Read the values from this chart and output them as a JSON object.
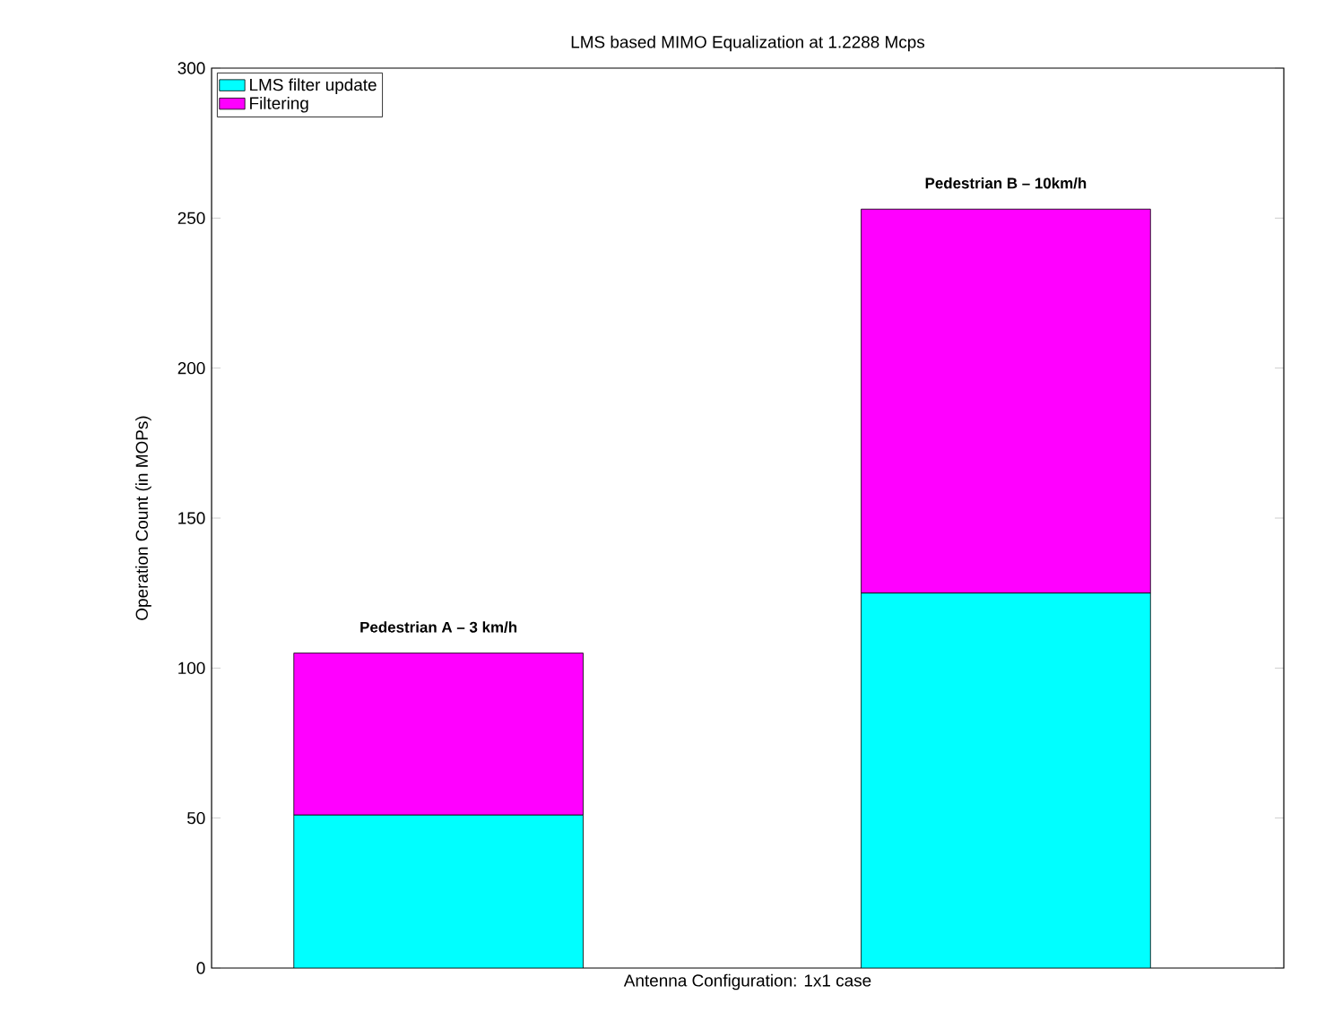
{
  "chart_data": {
    "type": "bar",
    "stacked": true,
    "title": "LMS based MIMO Equalization at 1.2288 Mcps",
    "xlabel": "Antenna Configuration: 1x1 case",
    "ylabel": "Operation Count (in MOPs)",
    "categories": [
      null,
      null
    ],
    "series": [
      {
        "name": "LMS filter update",
        "color": "#00ffff",
        "values": [
          51,
          125
        ]
      },
      {
        "name": "Filtering",
        "color": "#ff00ff",
        "values": [
          54,
          128
        ]
      }
    ],
    "annotations": [
      {
        "text": "Pedestrian A – 3 km/h",
        "y": 105
      },
      {
        "text": "Pedestrian B – 10km/h",
        "y": 253
      }
    ],
    "ylim": [
      0,
      300
    ],
    "yticks": [
      0,
      50,
      100,
      150,
      200,
      250,
      300
    ],
    "legend": "top left"
  }
}
